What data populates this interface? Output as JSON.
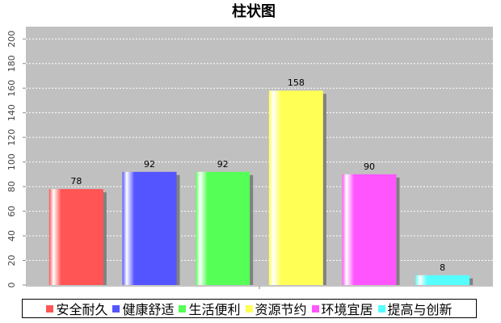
{
  "chart_data": {
    "type": "bar",
    "title": "柱状图",
    "series": [
      {
        "name": "安全耐久",
        "color": "#ff5555",
        "values": [
          78
        ]
      },
      {
        "name": "健康舒适",
        "color": "#5555ff",
        "values": [
          92
        ]
      },
      {
        "name": "生活便利",
        "color": "#55ff55",
        "values": [
          92
        ]
      },
      {
        "name": "资源节约",
        "color": "#ffff55",
        "values": [
          158
        ]
      },
      {
        "name": "环境宜居",
        "color": "#ff55ff",
        "values": [
          90
        ]
      },
      {
        "name": "提高与创新",
        "color": "#55ffff",
        "values": [
          8
        ]
      }
    ],
    "ylim": [
      0,
      210
    ],
    "yticks": [
      0,
      20,
      40,
      60,
      80,
      100,
      120,
      140,
      160,
      180,
      200
    ],
    "grid": true,
    "legend": "bottom"
  }
}
